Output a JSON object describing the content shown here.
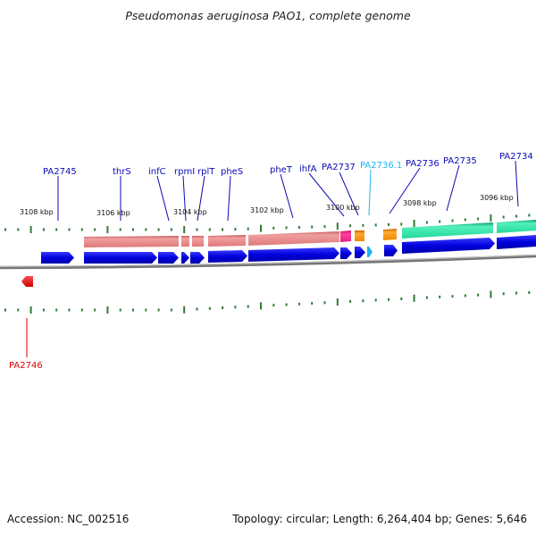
{
  "title": "Pseudomonas aeruginosa PAO1, complete genome",
  "footer": {
    "accession": "Accession: NC_002516",
    "summary": "Topology: circular; Length: 6,264,404 bp; Genes: 5,646"
  },
  "kbp_labels": [
    "3108 kbp",
    "3106 kbp",
    "3104 kbp",
    "3102 kbp",
    "3100 kbp",
    "3098 kbp",
    "3096 kbp"
  ],
  "gene_labels": [
    "PA2745",
    "thrS",
    "infC",
    "rpmI",
    "rplT",
    "pheS",
    "pheT",
    "ihfA",
    "PA2737",
    "PA2736.1",
    "PA2736",
    "PA2735",
    "PA2734",
    "PA2746"
  ],
  "colors": {
    "gene_blue": "#0000dd",
    "label_blue": "#0a0ab4",
    "trna_cyan": "#1eb4f0",
    "reverse_red": "#dd0000",
    "rrna_pink": "#e88a8a",
    "cds_green": "#22dd99",
    "magenta": "#e0207a",
    "orange": "#ee8800",
    "tick_green": "#2e7d32",
    "backbone_gray": "#888888"
  }
}
